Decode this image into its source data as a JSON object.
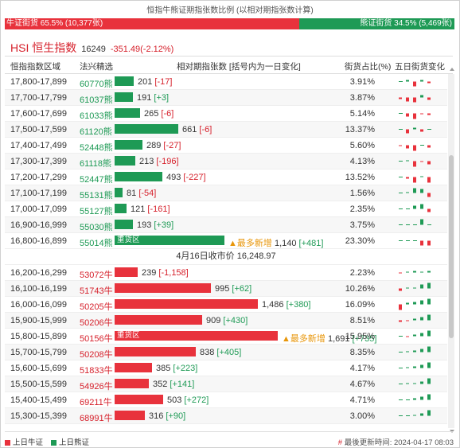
{
  "header": {
    "title": "恒指牛熊证期指张数比例 (以相对期指张数计算)",
    "bull_label": "牛证街货 65.5% (10,377张)",
    "bear_label": "熊证街货 34.5% (5,469张)",
    "bull_ratio": 0.655,
    "colors": {
      "bull": "#e8323c",
      "bear": "#1e9a55",
      "accent": "#d6202b",
      "highlight": "#e8960a"
    }
  },
  "index": {
    "name": "HSI 恒生指数",
    "price": "16249",
    "change": "-351.49(-2.12%)"
  },
  "columns": {
    "range": "恒指指数区域",
    "code": "法兴精选",
    "contracts": "相对期指张数 [括号内为一日变化]",
    "pct": "街货占比(%)",
    "trend": "五日街货变化"
  },
  "bear_rows": [
    {
      "range": "17,800-17,899",
      "code": "60770熊",
      "contracts": 201,
      "value": "201",
      "change": "[-17]",
      "pct": "3.91%",
      "spark": [
        0,
        2,
        -6,
        2,
        -2
      ]
    },
    {
      "range": "17,700-17,799",
      "code": "61037熊",
      "contracts": 191,
      "value": "191",
      "change": "[+3]",
      "pct": "3.87%",
      "spark": [
        -2,
        -5,
        -6,
        3,
        -3
      ]
    },
    {
      "range": "17,600-17,699",
      "code": "61033熊",
      "contracts": 265,
      "value": "265",
      "change": "[-6]",
      "pct": "5.14%",
      "spark": [
        0,
        -4,
        -7,
        -1,
        -2
      ]
    },
    {
      "range": "17,500-17,599",
      "code": "61120熊",
      "contracts": 661,
      "value": "661",
      "change": "[-6]",
      "pct": "13.37%",
      "spark": [
        0,
        -5,
        2,
        -3,
        0
      ]
    },
    {
      "range": "17,400-17,499",
      "code": "52448熊",
      "contracts": 289,
      "value": "289",
      "change": "[-27]",
      "pct": "5.60%",
      "spark": [
        -1,
        -4,
        -7,
        0,
        -3
      ]
    },
    {
      "range": "17,300-17,399",
      "code": "61118熊",
      "contracts": 213,
      "value": "213",
      "change": "[-196]",
      "pct": "4.13%",
      "spark": [
        0,
        1,
        -7,
        -1,
        -4
      ]
    },
    {
      "range": "17,200-17,299",
      "code": "52447熊",
      "contracts": 493,
      "value": "493",
      "change": "[-227]",
      "pct": "13.52%",
      "spark": [
        0,
        -2,
        -7,
        1,
        -7
      ]
    },
    {
      "range": "17,100-17,199",
      "code": "55131熊",
      "contracts": 81,
      "value": "81",
      "change": "[-54]",
      "pct": "1.56%",
      "spark": [
        0,
        1,
        6,
        5,
        -5
      ]
    },
    {
      "range": "17,000-17,099",
      "code": "55127熊",
      "contracts": 121,
      "value": "121",
      "change": "[-161]",
      "pct": "2.35%",
      "spark": [
        0,
        0,
        4,
        6,
        -4
      ]
    },
    {
      "range": "16,900-16,999",
      "code": "55030熊",
      "contracts": 193,
      "value": "193",
      "change": "[+39]",
      "pct": "3.75%",
      "spark": [
        0,
        0,
        0,
        7,
        0
      ]
    },
    {
      "range": "16,800-16,899",
      "code": "55014熊",
      "contracts": 1140,
      "value": "1,140",
      "change": "[+481]",
      "pct": "23.30%",
      "spark": [
        0,
        0,
        0,
        -6,
        -6
      ],
      "label": "重货区",
      "note": "▲最多新增"
    }
  ],
  "closing": "4月16日收市价 16,248.97",
  "bull_rows": [
    {
      "range": "16,200-16,299",
      "code": "53072牛",
      "contracts": 239,
      "value": "239",
      "change": "[-1,158]",
      "pct": "2.23%",
      "spark": [
        -1,
        1,
        2,
        1,
        2
      ]
    },
    {
      "range": "16,100-16,199",
      "code": "51743牛",
      "contracts": 995,
      "value": "995",
      "change": "[+62]",
      "pct": "10.26%",
      "spark": [
        -3,
        1,
        1,
        5,
        7
      ]
    },
    {
      "range": "16,000-16,099",
      "code": "50205牛",
      "contracts": 1486,
      "value": "1,486",
      "change": "[+380]",
      "pct": "16.09%",
      "spark": [
        -7,
        2,
        3,
        5,
        7
      ]
    },
    {
      "range": "15,900-15,999",
      "code": "50206牛",
      "contracts": 909,
      "value": "909",
      "change": "[+430]",
      "pct": "8.51%",
      "spark": [
        -2,
        -1,
        2,
        4,
        7
      ]
    },
    {
      "range": "15,800-15,899",
      "code": "50156牛",
      "contracts": 1691,
      "value": "1,691",
      "change": "[+735]",
      "pct": "15.95%",
      "spark": [
        0,
        -1,
        2,
        4,
        7
      ],
      "label": "重货区",
      "note": "▲最多新增"
    },
    {
      "range": "15,700-15,799",
      "code": "50208牛",
      "contracts": 838,
      "value": "838",
      "change": "[+405]",
      "pct": "8.35%",
      "spark": [
        0,
        1,
        2,
        4,
        7
      ]
    },
    {
      "range": "15,600-15,699",
      "code": "51833牛",
      "contracts": 385,
      "value": "385",
      "change": "[+223]",
      "pct": "4.17%",
      "spark": [
        0,
        1,
        2,
        4,
        7
      ]
    },
    {
      "range": "15,500-15,599",
      "code": "54926牛",
      "contracts": 352,
      "value": "352",
      "change": "[+141]",
      "pct": "4.67%",
      "spark": [
        0,
        1,
        1,
        3,
        7
      ]
    },
    {
      "range": "15,400-15,499",
      "code": "69211牛",
      "contracts": 503,
      "value": "503",
      "change": "[+272]",
      "pct": "4.71%",
      "spark": [
        0,
        0,
        2,
        4,
        7
      ]
    },
    {
      "range": "15,300-15,399",
      "code": "68991牛",
      "contracts": 316,
      "value": "316",
      "change": "[+90]",
      "pct": "3.00%",
      "spark": [
        0,
        0,
        1,
        3,
        7
      ]
    }
  ],
  "legend": {
    "bull": "上日牛证",
    "bear": "上日熊证"
  },
  "footer": {
    "hash": "#",
    "updated": "最後更新時间: 2024-04-17 08:03"
  }
}
